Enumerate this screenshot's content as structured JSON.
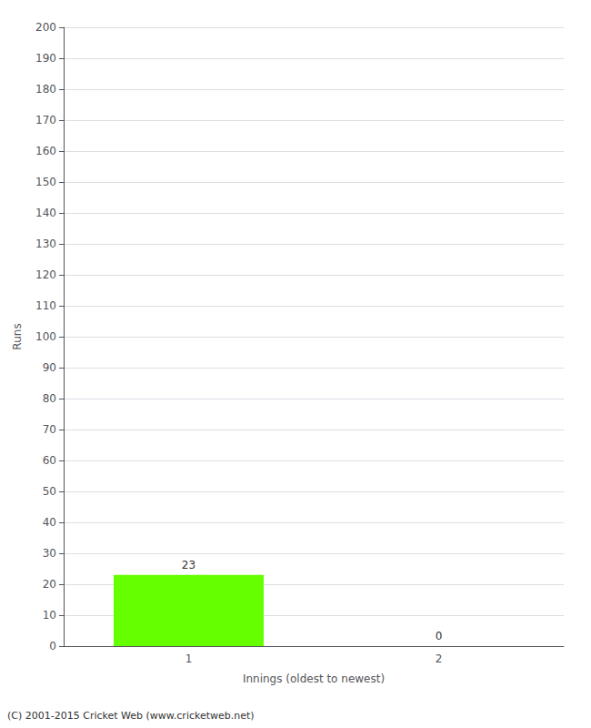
{
  "chart_data": {
    "type": "bar",
    "xlabel": "Innings (oldest to newest)",
    "ylabel": "Runs",
    "categories": [
      1,
      2
    ],
    "values": [
      23,
      0
    ],
    "color": "#66ff00",
    "data_labels": true,
    "ylim": [
      0,
      200
    ],
    "yticks": [
      0,
      10,
      20,
      30,
      40,
      50,
      60,
      70,
      80,
      90,
      100,
      110,
      120,
      130,
      140,
      150,
      160,
      170,
      180,
      190,
      200
    ],
    "grid": true,
    "footer": "(C) 2001-2015 Cricket Web (www.cricketweb.net)"
  }
}
